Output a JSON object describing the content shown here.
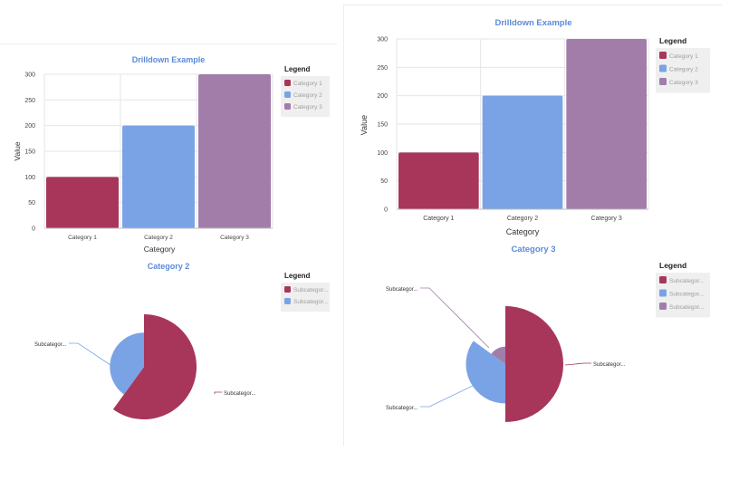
{
  "colors": {
    "category_1": "#a8365b",
    "category_2": "#7aa3e5",
    "category_3": "#a27daa",
    "title": "#5b8ad6",
    "legend_bg": "#efefef",
    "grid": "#e6e6e6"
  },
  "chart_data": [
    {
      "type": "bar",
      "title": "Drilldown Example",
      "categories": [
        "Category 1",
        "Category 2",
        "Category 3"
      ],
      "values": [
        100,
        200,
        300
      ],
      "xlabel": "Category",
      "ylabel": "Value",
      "ylim": [
        0,
        300
      ],
      "yticks": [
        "0",
        "50",
        "100",
        "150",
        "200",
        "250",
        "300"
      ],
      "grid": true,
      "legend": {
        "title": "Legend",
        "position": "right",
        "entries": [
          "Category 1",
          "Category 2",
          "Category 3"
        ]
      }
    },
    {
      "type": "pie",
      "title": "Category 2",
      "slices": [
        {
          "label": "Subcategor...",
          "value": 60
        },
        {
          "label": "Subcategor...",
          "value": 40
        }
      ],
      "legend": {
        "title": "Legend",
        "position": "right",
        "entries": [
          "Subcategor...",
          "Subcategor..."
        ]
      }
    },
    {
      "type": "bar",
      "title": "Drilldown Example",
      "categories": [
        "Category 1",
        "Category 2",
        "Category 3"
      ],
      "values": [
        100,
        200,
        300
      ],
      "xlabel": "Category",
      "ylabel": "Value",
      "ylim": [
        0,
        300
      ],
      "yticks": [
        "0",
        "50",
        "100",
        "150",
        "200",
        "250",
        "300"
      ],
      "grid": true,
      "legend": {
        "title": "Legend",
        "position": "right",
        "entries": [
          "Category 1",
          "Category 2",
          "Category 3"
        ]
      }
    },
    {
      "type": "pie",
      "title": "Category 3",
      "slices": [
        {
          "label": "Subcategor...",
          "value": 50
        },
        {
          "label": "Subcategor...",
          "value": 35
        },
        {
          "label": "Subcategor...",
          "value": 15
        }
      ],
      "legend": {
        "title": "Legend",
        "position": "right",
        "entries": [
          "Subcategor...",
          "Subcategor...",
          "Subcategor..."
        ]
      }
    }
  ]
}
